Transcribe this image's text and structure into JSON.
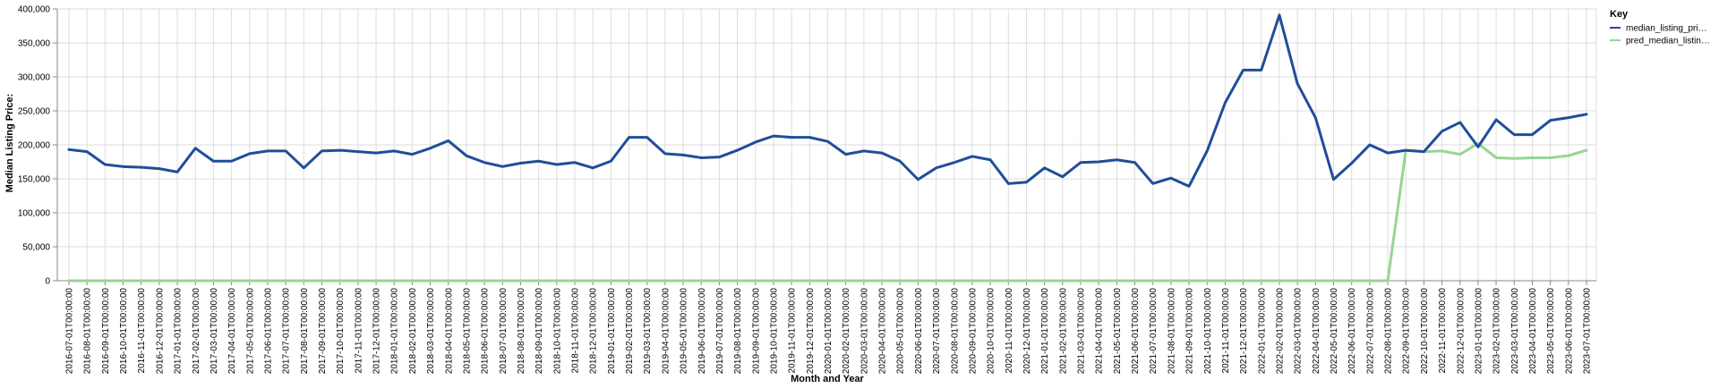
{
  "chart_data": {
    "type": "line",
    "xlabel": "Month and Year",
    "ylabel": "Median Listing Price:",
    "ylim": [
      0,
      400000
    ],
    "yticks": [
      0,
      50000,
      100000,
      150000,
      200000,
      250000,
      300000,
      350000,
      400000
    ],
    "ytick_labels": [
      "0",
      "50,000",
      "100,000",
      "150,000",
      "200,000",
      "250,000",
      "300,000",
      "350,000",
      "400,000"
    ],
    "grid": true,
    "legend_position": "top-right",
    "legend_title": "Key",
    "categories": [
      "2016-07-01T00:00:00",
      "2016-08-01T00:00:00",
      "2016-09-01T00:00:00",
      "2016-10-01T00:00:00",
      "2016-11-01T00:00:00",
      "2016-12-01T00:00:00",
      "2017-01-01T00:00:00",
      "2017-02-01T00:00:00",
      "2017-03-01T00:00:00",
      "2017-04-01T00:00:00",
      "2017-05-01T00:00:00",
      "2017-06-01T00:00:00",
      "2017-07-01T00:00:00",
      "2017-08-01T00:00:00",
      "2017-09-01T00:00:00",
      "2017-10-01T00:00:00",
      "2017-11-01T00:00:00",
      "2017-12-01T00:00:00",
      "2018-01-01T00:00:00",
      "2018-02-01T00:00:00",
      "2018-03-01T00:00:00",
      "2018-04-01T00:00:00",
      "2018-05-01T00:00:00",
      "2018-06-01T00:00:00",
      "2018-07-01T00:00:00",
      "2018-08-01T00:00:00",
      "2018-09-01T00:00:00",
      "2018-10-01T00:00:00",
      "2018-11-01T00:00:00",
      "2018-12-01T00:00:00",
      "2019-01-01T00:00:00",
      "2019-02-01T00:00:00",
      "2019-03-01T00:00:00",
      "2019-04-01T00:00:00",
      "2019-05-01T00:00:00",
      "2019-06-01T00:00:00",
      "2019-07-01T00:00:00",
      "2019-08-01T00:00:00",
      "2019-09-01T00:00:00",
      "2019-10-01T00:00:00",
      "2019-11-01T00:00:00",
      "2019-12-01T00:00:00",
      "2020-01-01T00:00:00",
      "2020-02-01T00:00:00",
      "2020-03-01T00:00:00",
      "2020-04-01T00:00:00",
      "2020-05-01T00:00:00",
      "2020-06-01T00:00:00",
      "2020-07-01T00:00:00",
      "2020-08-01T00:00:00",
      "2020-09-01T00:00:00",
      "2020-10-01T00:00:00",
      "2020-11-01T00:00:00",
      "2020-12-01T00:00:00",
      "2021-01-01T00:00:00",
      "2021-02-01T00:00:00",
      "2021-03-01T00:00:00",
      "2021-04-01T00:00:00",
      "2021-05-01T00:00:00",
      "2021-06-01T00:00:00",
      "2021-07-01T00:00:00",
      "2021-08-01T00:00:00",
      "2021-09-01T00:00:00",
      "2021-10-01T00:00:00",
      "2021-11-01T00:00:00",
      "2021-12-01T00:00:00",
      "2022-01-01T00:00:00",
      "2022-02-01T00:00:00",
      "2022-03-01T00:00:00",
      "2022-04-01T00:00:00",
      "2022-05-01T00:00:00",
      "2022-06-01T00:00:00",
      "2022-07-01T00:00:00",
      "2022-08-01T00:00:00",
      "2022-09-01T00:00:00",
      "2022-10-01T00:00:00",
      "2022-11-01T00:00:00",
      "2022-12-01T00:00:00",
      "2023-01-01T00:00:00",
      "2023-02-01T00:00:00",
      "2023-03-01T00:00:00",
      "2023-04-01T00:00:00",
      "2023-05-01T00:00:00",
      "2023-06-01T00:00:00",
      "2023-07-01T00:00:00"
    ],
    "series": [
      {
        "name": "median_listing_pri…",
        "color": "#1f4e99",
        "values": [
          193000,
          190000,
          171000,
          168000,
          167000,
          165000,
          160000,
          195000,
          176000,
          176000,
          187000,
          191000,
          191000,
          166000,
          191000,
          192000,
          190000,
          188000,
          191000,
          186000,
          195000,
          206000,
          184000,
          174000,
          168000,
          173000,
          176000,
          171000,
          174000,
          166000,
          176000,
          211000,
          211000,
          187000,
          185000,
          181000,
          182000,
          192000,
          204000,
          213000,
          211000,
          211000,
          205000,
          186000,
          191000,
          188000,
          176000,
          149000,
          166000,
          174000,
          183000,
          178000,
          143000,
          145000,
          166000,
          153000,
          174000,
          175000,
          178000,
          174000,
          143000,
          151000,
          139000,
          191000,
          262000,
          310000,
          310000,
          391000,
          290000,
          240000,
          149000,
          173000,
          200000,
          188000,
          192000,
          190000,
          220000,
          233000,
          197000,
          237000,
          215000,
          215000,
          236000,
          240000,
          245000
        ]
      },
      {
        "name": "pred_median_listin…",
        "color": "#98d493",
        "values": [
          0,
          0,
          0,
          0,
          0,
          0,
          0,
          0,
          0,
          0,
          0,
          0,
          0,
          0,
          0,
          0,
          0,
          0,
          0,
          0,
          0,
          0,
          0,
          0,
          0,
          0,
          0,
          0,
          0,
          0,
          0,
          0,
          0,
          0,
          0,
          0,
          0,
          0,
          0,
          0,
          0,
          0,
          0,
          0,
          0,
          0,
          0,
          0,
          0,
          0,
          0,
          0,
          0,
          0,
          0,
          0,
          0,
          0,
          0,
          0,
          0,
          0,
          0,
          0,
          0,
          0,
          0,
          0,
          0,
          0,
          0,
          0,
          0,
          0,
          192000,
          190000,
          191000,
          186000,
          202000,
          181000,
          180000,
          181000,
          181000,
          184000,
          192000
        ]
      }
    ]
  }
}
